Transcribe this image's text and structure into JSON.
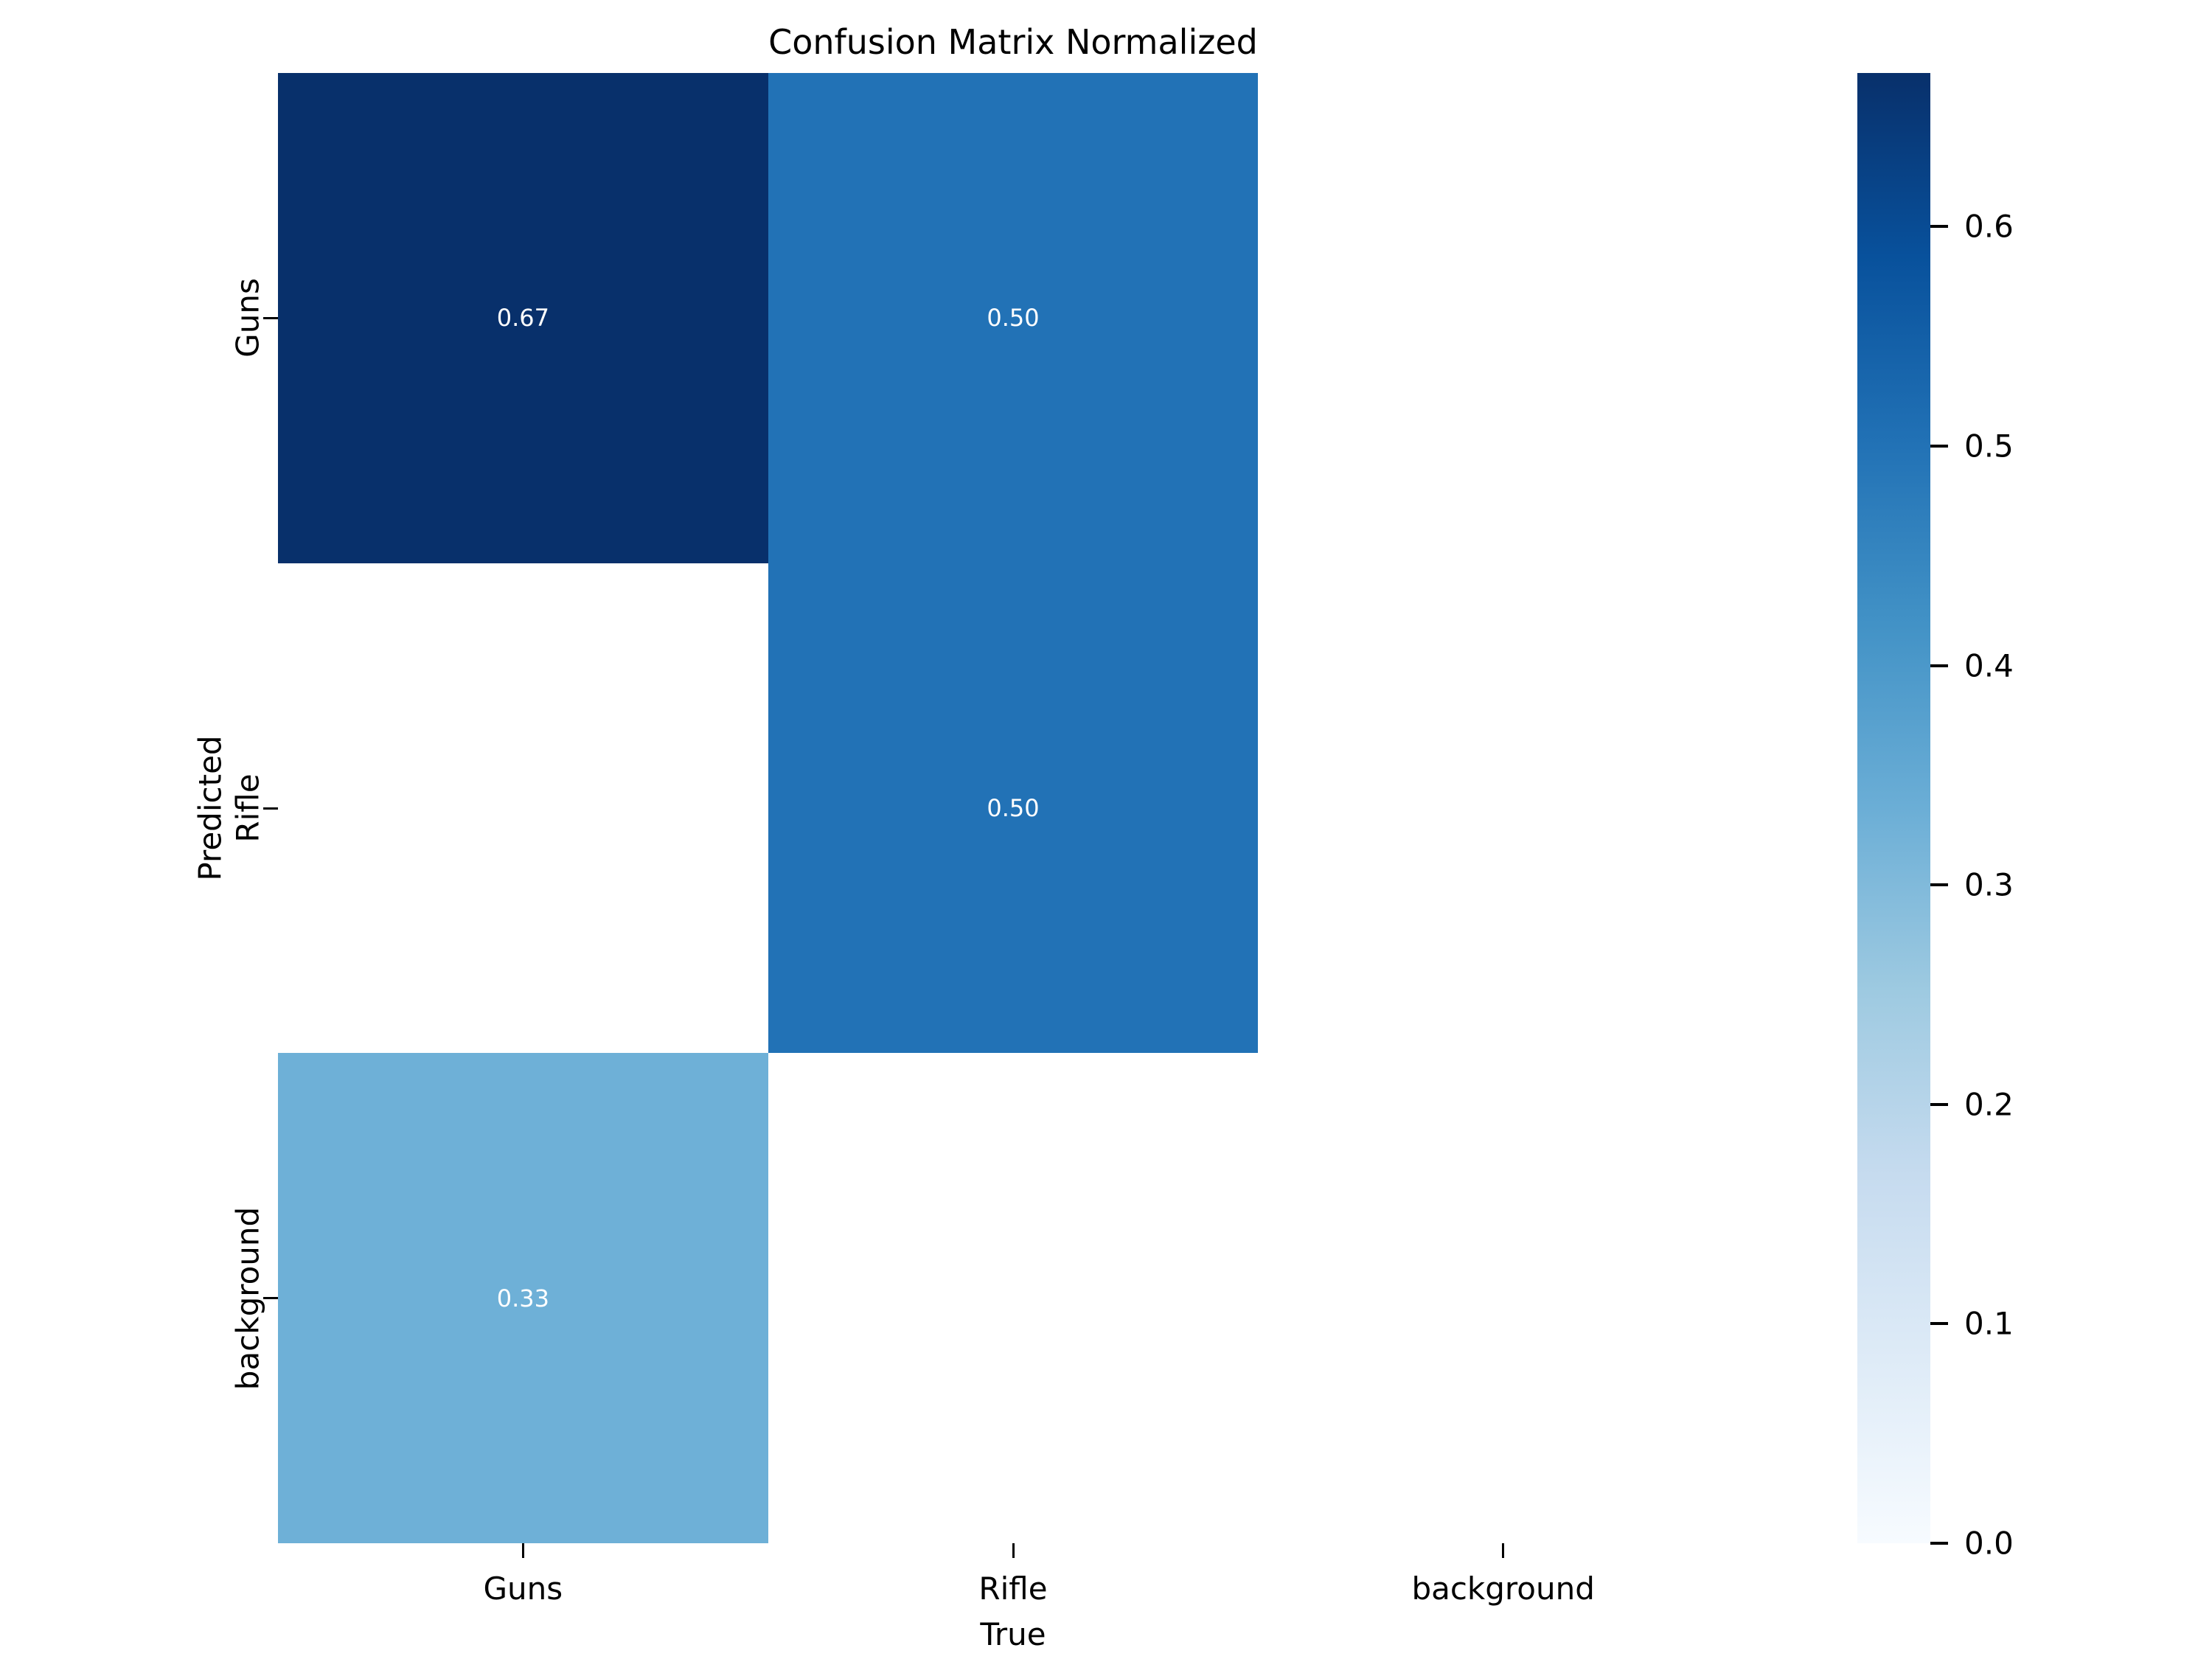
{
  "chart_data": {
    "type": "heatmap",
    "title": "Confusion Matrix Normalized",
    "xlabel": "True",
    "ylabel": "Predicted",
    "x_categories": [
      "Guns",
      "Rifle",
      "background"
    ],
    "y_categories": [
      "Guns",
      "Rifle",
      "background"
    ],
    "matrix_rows_predicted_cols_true": [
      [
        0.67,
        0.5,
        null
      ],
      [
        null,
        0.5,
        null
      ],
      [
        0.33,
        null,
        null
      ]
    ],
    "cell_annotations": [
      [
        "0.67",
        "0.50",
        ""
      ],
      [
        "",
        "0.50",
        ""
      ],
      [
        "0.33",
        "",
        ""
      ]
    ],
    "colormap": "Blues",
    "vmin": 0.0,
    "vmax": 0.67,
    "colorbar_ticks": [
      0.0,
      0.1,
      0.2,
      0.3,
      0.4,
      0.5,
      0.6
    ],
    "legend_position": "colorbar-right",
    "grid": false,
    "colors": {
      "cell_high": "#08306b",
      "cell_mid": "#2171b5",
      "cell_low": "#6baed6",
      "empty_cell": "#ffffff",
      "annotation_text": "#ffffff",
      "axis_text": "#000000",
      "background": "#ffffff"
    }
  }
}
